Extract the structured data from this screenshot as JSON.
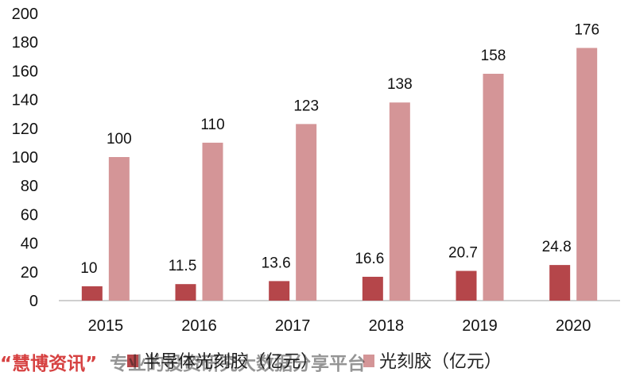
{
  "chart_data": {
    "type": "bar",
    "categories": [
      "2015",
      "2016",
      "2017",
      "2018",
      "2019",
      "2020"
    ],
    "series": [
      {
        "name": "半导体光刻胶（亿元）",
        "values": [
          10,
          11.5,
          13.6,
          16.6,
          20.7,
          24.8
        ],
        "color": "#b5464a"
      },
      {
        "name": "光刻胶（亿元）",
        "values": [
          100,
          110,
          123,
          138,
          158,
          176
        ],
        "color": "#d49597"
      }
    ],
    "ylim": [
      0,
      200
    ],
    "yticks": [
      0,
      20,
      40,
      60,
      80,
      100,
      120,
      140,
      160,
      180,
      200
    ],
    "grid": false,
    "legend_position": "bottom"
  },
  "watermark": {
    "brand": "“慧博资讯”",
    "text": "专业的投资研究大数据分享平台"
  }
}
